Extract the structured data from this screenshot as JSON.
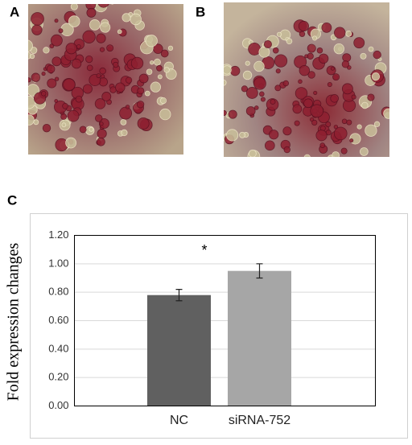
{
  "panels": {
    "a": "A",
    "b": "B",
    "c": "C"
  },
  "chart_data": {
    "type": "bar",
    "ylabel": "Fold expression changes",
    "categories": [
      "NC",
      "siRNA-752"
    ],
    "values": [
      0.78,
      0.95
    ],
    "errors": [
      0.04,
      0.05
    ],
    "colors": [
      "#606060",
      "#a6a6a6"
    ],
    "annotation": "*",
    "ylim": [
      0,
      1.2
    ],
    "yticks": [
      {
        "value": 0,
        "label": "0.00"
      },
      {
        "value": 0.2,
        "label": "0.20"
      },
      {
        "value": 0.4,
        "label": "0.40"
      },
      {
        "value": 0.6,
        "label": "0.60"
      },
      {
        "value": 0.8,
        "label": "0.80"
      },
      {
        "value": 1.0,
        "label": "1.00"
      },
      {
        "value": 1.2,
        "label": "1.20"
      }
    ],
    "grid": true
  }
}
